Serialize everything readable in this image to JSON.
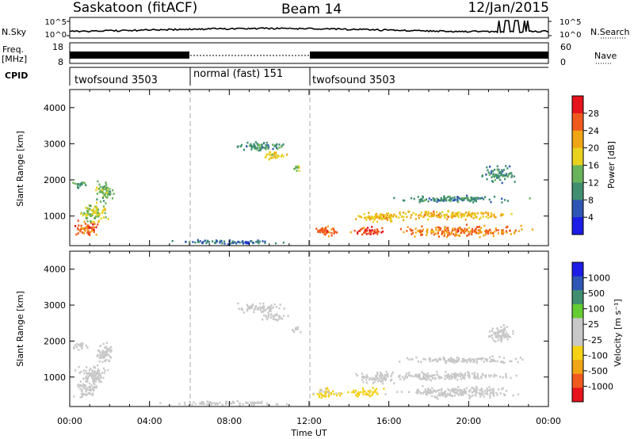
{
  "header": {
    "station": "Saskatoon (fitACF)",
    "beam": "Beam 14",
    "date": "12/Jan/2015"
  },
  "noise_panel": {
    "left_label": "N.Sky",
    "right_label": "N.Search",
    "left_ticks": [
      "10^5",
      "10^0"
    ],
    "right_ticks": [
      "10^5",
      "10^0"
    ]
  },
  "freq_panel": {
    "left_label": "Freq.",
    "left_unit": "[MHz]",
    "right_label": "Nave",
    "left_ticks": [
      "18",
      "8"
    ],
    "right_ticks": [
      "60",
      "0"
    ]
  },
  "cpid": {
    "label": "CPID",
    "segments": [
      {
        "start": 0,
        "end": 6,
        "text": "twofsound 3503"
      },
      {
        "start": 6,
        "end": 12,
        "text": "normal (fast) 151"
      },
      {
        "start": 12,
        "end": 24,
        "text": "twofsound 3503"
      }
    ]
  },
  "x_axis": {
    "label": "Time UT",
    "ticks": [
      "00:00",
      "04:00",
      "08:00",
      "12:00",
      "16:00",
      "20:00",
      "00:00"
    ],
    "range_hours": [
      0,
      24
    ]
  },
  "chart_data": [
    {
      "type": "heatmap",
      "name": "power",
      "ylabel": "Slant Range [km]",
      "yticks": [
        1000,
        2000,
        3000,
        4000
      ],
      "ylim": [
        180,
        4500
      ],
      "xlim": [
        0,
        24
      ],
      "colorbar": {
        "label": "Power [dB]",
        "ticks": [
          "28",
          "24",
          "20",
          "16",
          "12",
          "8",
          "4"
        ],
        "range": [
          0,
          32
        ],
        "colors": [
          "#1c1ce6",
          "#2d56b4",
          "#3f8f70",
          "#69b35a",
          "#e8d21e",
          "#f0a515",
          "#f05a1e",
          "#e6121c"
        ]
      },
      "blobs": [
        {
          "t": 0.8,
          "r": 700,
          "dt": 0.8,
          "dr": 300,
          "v": 26
        },
        {
          "t": 1.2,
          "r": 1100,
          "dt": 1.0,
          "dr": 350,
          "v": 16
        },
        {
          "t": 1.7,
          "r": 1700,
          "dt": 0.6,
          "dr": 400,
          "v": 14
        },
        {
          "t": 0.5,
          "r": 1900,
          "dt": 0.5,
          "dr": 150,
          "v": 12
        },
        {
          "t": 9.5,
          "r": 2950,
          "dt": 1.6,
          "dr": 170,
          "v": 10
        },
        {
          "t": 10.2,
          "r": 2700,
          "dt": 0.8,
          "dr": 160,
          "v": 18
        },
        {
          "t": 11.3,
          "r": 2350,
          "dt": 0.4,
          "dr": 100,
          "v": 14
        },
        {
          "t": 12.8,
          "r": 600,
          "dt": 1.0,
          "dr": 180,
          "v": 26
        },
        {
          "t": 14.8,
          "r": 600,
          "dt": 1.2,
          "dr": 150,
          "v": 28
        },
        {
          "t": 15.5,
          "r": 1000,
          "dt": 1.5,
          "dr": 200,
          "v": 20
        },
        {
          "t": 19.0,
          "r": 1050,
          "dt": 4.5,
          "dr": 150,
          "v": 20
        },
        {
          "t": 19.5,
          "r": 600,
          "dt": 4.0,
          "dr": 200,
          "v": 24
        },
        {
          "t": 19.5,
          "r": 1500,
          "dt": 4.0,
          "dr": 120,
          "v": 10
        },
        {
          "t": 21.5,
          "r": 2200,
          "dt": 1.0,
          "dr": 300,
          "v": 10
        },
        {
          "t": 8.0,
          "r": 300,
          "dt": 4.0,
          "dr": 80,
          "v": 8
        }
      ]
    },
    {
      "type": "heatmap",
      "name": "velocity",
      "ylabel": "Slant Range [km]",
      "yticks": [
        1000,
        2000,
        3000,
        4000
      ],
      "ylim": [
        180,
        4500
      ],
      "xlim": [
        0,
        24
      ],
      "colorbar": {
        "label": "Velocity [m s⁻¹]",
        "ticks": [
          "1000",
          "500",
          "100",
          "25",
          "-25",
          "-100",
          "-500",
          "-1000"
        ],
        "range": [
          -1200,
          1200
        ],
        "colors": [
          "#e6121c",
          "#f05a1e",
          "#f0a515",
          "#f5d214",
          "#c8c8c8",
          "#c8c8c8",
          "#66cc33",
          "#3f8f70",
          "#2d56b4",
          "#1c1ce6"
        ]
      },
      "blobs": [
        {
          "t": 0.8,
          "r": 700,
          "dt": 0.8,
          "dr": 300,
          "v": 150
        },
        {
          "t": 1.2,
          "r": 1100,
          "dt": 1.0,
          "dr": 350,
          "v": 80
        },
        {
          "t": 1.7,
          "r": 1700,
          "dt": 0.6,
          "dr": 400,
          "v": 0
        },
        {
          "t": 0.5,
          "r": 1900,
          "dt": 0.5,
          "dr": 150,
          "v": 0
        },
        {
          "t": 9.5,
          "r": 2950,
          "dt": 1.6,
          "dr": 170,
          "v": 0
        },
        {
          "t": 10.2,
          "r": 2700,
          "dt": 0.8,
          "dr": 160,
          "v": 0
        },
        {
          "t": 11.3,
          "r": 2350,
          "dt": 0.4,
          "dr": 100,
          "v": 0
        },
        {
          "t": 12.8,
          "r": 600,
          "dt": 1.0,
          "dr": 180,
          "v": -250
        },
        {
          "t": 14.8,
          "r": 600,
          "dt": 1.2,
          "dr": 150,
          "v": -300
        },
        {
          "t": 15.5,
          "r": 1000,
          "dt": 1.5,
          "dr": 200,
          "v": 0
        },
        {
          "t": 19.0,
          "r": 1050,
          "dt": 4.5,
          "dr": 150,
          "v": 0
        },
        {
          "t": 19.5,
          "r": 600,
          "dt": 4.0,
          "dr": 200,
          "v": 0
        },
        {
          "t": 19.5,
          "r": 1500,
          "dt": 4.0,
          "dr": 120,
          "v": 0
        },
        {
          "t": 21.5,
          "r": 2200,
          "dt": 1.0,
          "dr": 300,
          "v": 60
        },
        {
          "t": 8.0,
          "r": 300,
          "dt": 4.0,
          "dr": 80,
          "v": -40
        }
      ]
    }
  ]
}
